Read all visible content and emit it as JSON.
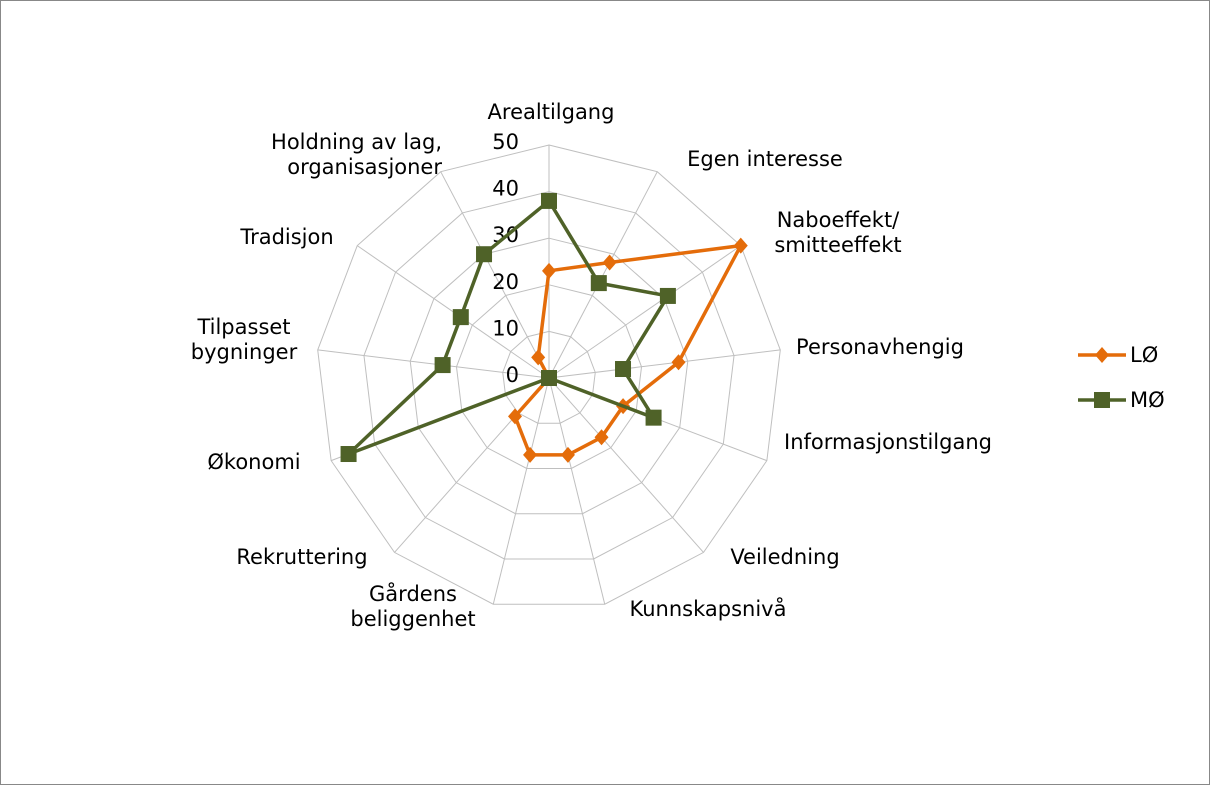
{
  "chart_data": {
    "type": "radar",
    "categories": [
      "Arealtilgang",
      "Egen interesse",
      "Naboeffekt/ smitteeffekt",
      "Personavhengig",
      "Informasjonstilgang",
      "Veiledning",
      "Kunnskapsnivå",
      "Gårdens beliggenhet",
      "Rekruttering",
      "Økonomi",
      "Tilpasset bygninger",
      "Tradisjon",
      "Holdning av lag, organisasjoner"
    ],
    "series": [
      {
        "name": "LØ",
        "color": "#e46c0a",
        "marker": "diamond",
        "values": [
          23,
          28,
          50,
          28,
          17,
          17,
          17,
          17,
          11,
          0,
          0,
          0,
          5
        ]
      },
      {
        "name": "MØ",
        "color": "#4f6228",
        "marker": "square",
        "values": [
          38,
          23,
          31,
          16,
          24,
          0,
          0,
          0,
          0,
          46,
          23,
          23,
          30
        ]
      }
    ],
    "ylim": [
      0,
      50
    ],
    "yticks": [
      0,
      10,
      20,
      30,
      40,
      50
    ],
    "grid": true,
    "legend": "right"
  }
}
